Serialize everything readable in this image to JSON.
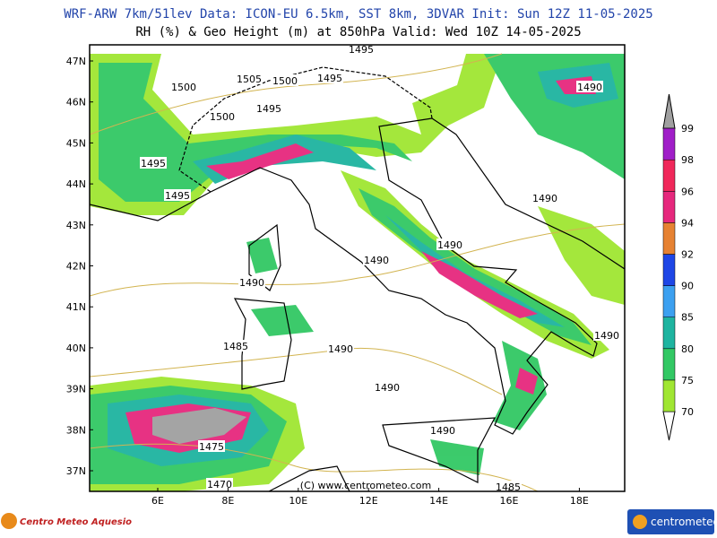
{
  "header": {
    "line1": "WRF-ARW 7km/51lev  Data: ICON-EU 6.5km, SST 8km, 3DVAR  Init: Sun 12Z 11-05-2025",
    "line2": "RH (%) & Geo Height (m) at 850hPa  Valid: Wed 10Z 14-05-2025"
  },
  "map": {
    "lat_labels": [
      "47N",
      "46N",
      "45N",
      "44N",
      "43N",
      "42N",
      "41N",
      "40N",
      "39N",
      "38N",
      "37N"
    ],
    "lon_labels": [
      "6E",
      "8E",
      "10E",
      "12E",
      "14E",
      "16E",
      "18E"
    ],
    "contour_labels": [
      "1500",
      "1505",
      "1500",
      "1495",
      "1495",
      "1500",
      "1495",
      "1495",
      "1495",
      "1490",
      "1490",
      "1490",
      "1490",
      "1490",
      "1490",
      "1485",
      "1490",
      "1490",
      "1490",
      "1475",
      "1470",
      "1485"
    ],
    "copyright": "(C) www.centrometeo.com"
  },
  "colorbar": {
    "levels": [
      70,
      75,
      80,
      85,
      90,
      92,
      94,
      96,
      98,
      99
    ],
    "colors": [
      "#a0e632",
      "#32c864",
      "#1eb4a0",
      "#3ca0f0",
      "#1e46e6",
      "#e68232",
      "#e6287d",
      "#f0285a",
      "#a01ec8"
    ],
    "over_color": "#a0a0a0"
  },
  "logos": {
    "left": "Centro Meteo Aquesio",
    "right": "centrometeo"
  }
}
